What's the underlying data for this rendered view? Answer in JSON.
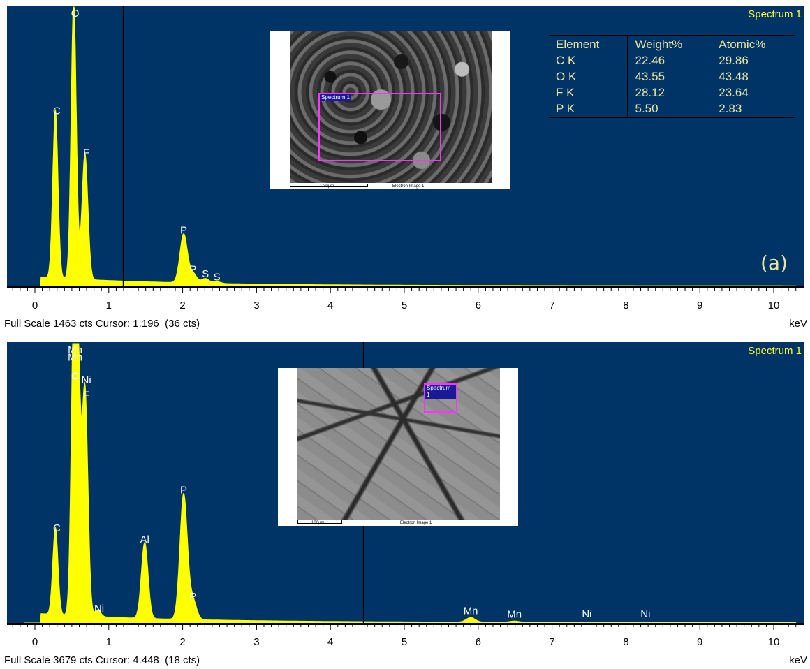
{
  "colors": {
    "background": "#003366",
    "spectrum": "#ffff00",
    "title": "#ffff33",
    "label": "#ffffff",
    "roi": "#ff33ff"
  },
  "chart_data": [
    {
      "type": "area",
      "title": "Spectrum 1",
      "panel_label": "(a)",
      "xlabel": "keV",
      "xlim": [
        -0.4,
        10.4
      ],
      "ylim": [
        0,
        1463
      ],
      "x_ticks": [
        "0",
        "1",
        "2",
        "3",
        "4",
        "5",
        "6",
        "7",
        "8",
        "9",
        "10"
      ],
      "cursor_keV": 1.196,
      "status": "Full Scale 1463 cts Cursor: 1.196  (36 cts)",
      "peaks": [
        {
          "keV": 0.277,
          "counts": 880,
          "width": 0.035
        },
        {
          "keV": 0.525,
          "counts": 1463,
          "width": 0.035
        },
        {
          "keV": 0.677,
          "counts": 660,
          "width": 0.04
        },
        {
          "keV": 2.013,
          "counts": 255,
          "width": 0.05
        },
        {
          "keV": 2.139,
          "counts": 50,
          "width": 0.05
        },
        {
          "keV": 2.307,
          "counts": 25,
          "width": 0.05
        },
        {
          "keV": 2.464,
          "counts": 10,
          "width": 0.05
        }
      ],
      "peak_labels": [
        {
          "text": "C",
          "keV": 0.277,
          "counts": 880
        },
        {
          "text": "O",
          "keV": 0.525,
          "counts": 1463
        },
        {
          "text": "F",
          "keV": 0.677,
          "counts": 660
        },
        {
          "text": "P",
          "keV": 2.013,
          "counts": 255
        },
        {
          "text": "P",
          "keV": 2.139,
          "counts": 50
        },
        {
          "text": "S",
          "keV": 2.307,
          "counts": 25
        },
        {
          "text": "S",
          "keV": 2.464,
          "counts": 10
        }
      ],
      "quant_table": {
        "headers": [
          "Element",
          "Weight%",
          "Atomic%"
        ],
        "rows": [
          [
            "C K",
            "22.46",
            "29.86"
          ],
          [
            "O K",
            "43.55",
            "43.48"
          ],
          [
            "F K",
            "28.12",
            "23.64"
          ],
          [
            "P K",
            "5.50",
            "2.83"
          ]
        ]
      },
      "image": {
        "roi_label": "Spectrum 1",
        "scale": "30µm",
        "caption": "Electron Image 1"
      }
    },
    {
      "type": "area",
      "title": "Spectrum 1",
      "xlabel": "keV",
      "xlim": [
        -0.4,
        10.4
      ],
      "ylim": [
        0,
        3679
      ],
      "x_ticks": [
        "0",
        "1",
        "2",
        "3",
        "4",
        "5",
        "6",
        "7",
        "8",
        "9",
        "10"
      ],
      "cursor_keV": 4.448,
      "status": "Full Scale 3679 cts Cursor: 4.448  (18 cts)",
      "peaks": [
        {
          "keV": 0.277,
          "counts": 1150,
          "width": 0.035
        },
        {
          "keV": 0.525,
          "counts": 3679,
          "width": 0.035
        },
        {
          "keV": 0.58,
          "counts": 3000,
          "width": 0.035
        },
        {
          "keV": 0.677,
          "counts": 3000,
          "width": 0.04
        },
        {
          "keV": 0.851,
          "counts": 90,
          "width": 0.04
        },
        {
          "keV": 1.486,
          "counts": 1000,
          "width": 0.045
        },
        {
          "keV": 2.013,
          "counts": 1650,
          "width": 0.05
        },
        {
          "keV": 2.139,
          "counts": 250,
          "width": 0.05
        },
        {
          "keV": 5.899,
          "counts": 60,
          "width": 0.06
        },
        {
          "keV": 6.49,
          "counts": 15,
          "width": 0.06
        }
      ],
      "peak_labels": [
        {
          "text": "C",
          "keV": 0.277,
          "counts": 1150
        },
        {
          "text": "Mn",
          "keV": 0.525,
          "counts": 3679
        },
        {
          "text": "Mn",
          "keV": 0.525,
          "counts": 3400
        },
        {
          "text": "O",
          "keV": 0.525,
          "counts": 3150
        },
        {
          "text": "Ni",
          "keV": 0.677,
          "counts": 3100
        },
        {
          "text": "F",
          "keV": 0.677,
          "counts": 2900
        },
        {
          "text": "Ni",
          "keV": 0.851,
          "counts": 90
        },
        {
          "text": "Al",
          "keV": 1.486,
          "counts": 1000
        },
        {
          "text": "P",
          "keV": 2.013,
          "counts": 1650
        },
        {
          "text": "P",
          "keV": 2.139,
          "counts": 250
        },
        {
          "text": "Mn",
          "keV": 5.899,
          "counts": 60
        },
        {
          "text": "Mn",
          "keV": 6.49,
          "counts": 15
        },
        {
          "text": "Ni",
          "keV": 7.471,
          "counts": 0
        },
        {
          "text": "Ni",
          "keV": 8.264,
          "counts": 0
        }
      ],
      "image": {
        "roi_label": "Spectrum 1",
        "scale": "100µm",
        "caption": "Electron Image 1"
      }
    }
  ]
}
